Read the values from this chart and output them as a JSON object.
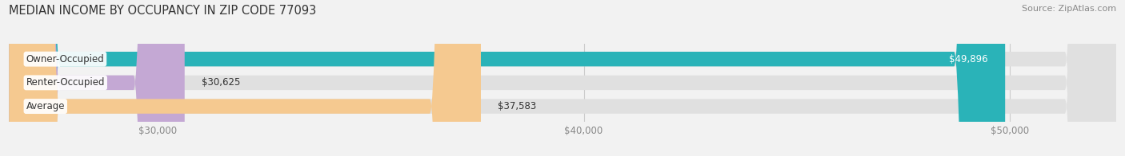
{
  "title": "MEDIAN INCOME BY OCCUPANCY IN ZIP CODE 77093",
  "source": "Source: ZipAtlas.com",
  "categories": [
    "Owner-Occupied",
    "Renter-Occupied",
    "Average"
  ],
  "values": [
    49896,
    30625,
    37583
  ],
  "bar_colors": [
    "#2ab3b8",
    "#c4a8d4",
    "#f5c990"
  ],
  "bar_labels": [
    "$49,896",
    "$30,625",
    "$37,583"
  ],
  "value_inside": [
    true,
    false,
    false
  ],
  "x_min": 26500,
  "x_max": 52500,
  "x_ticks": [
    30000,
    40000,
    50000
  ],
  "x_tick_labels": [
    "$30,000",
    "$40,000",
    "$50,000"
  ],
  "bg_color": "#f2f2f2",
  "bar_bg_color": "#e0e0e0",
  "title_fontsize": 10.5,
  "label_fontsize": 8.5,
  "tick_fontsize": 8.5,
  "source_fontsize": 8
}
